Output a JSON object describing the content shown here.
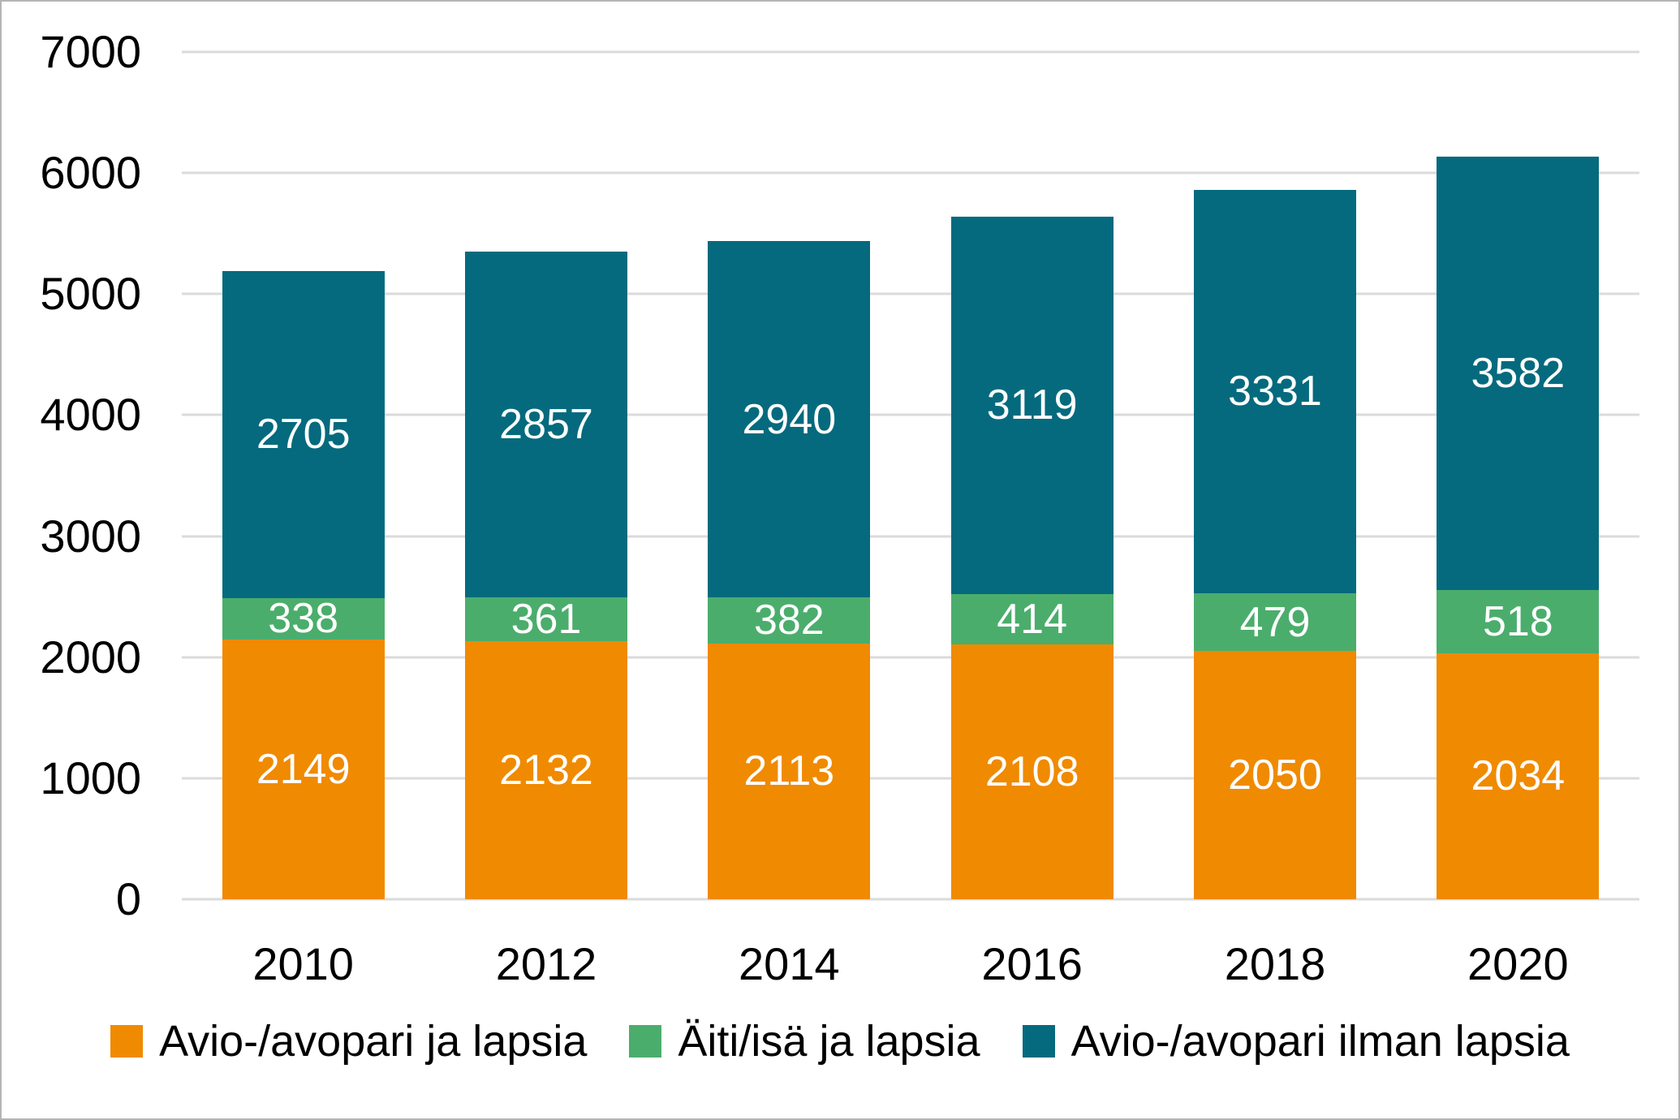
{
  "chart_data": {
    "type": "bar",
    "stacked": true,
    "categories": [
      "2010",
      "2012",
      "2014",
      "2016",
      "2018",
      "2020"
    ],
    "series": [
      {
        "id": "couple-with-children",
        "name": "Avio-/avopari ja lapsia",
        "color": "#f08a00",
        "values": [
          2149,
          2132,
          2113,
          2108,
          2050,
          2034
        ]
      },
      {
        "id": "single-parent-with-children",
        "name": "Äiti/isä ja lapsia",
        "color": "#4bad6c",
        "values": [
          338,
          361,
          382,
          414,
          479,
          518
        ]
      },
      {
        "id": "couple-without-children",
        "name": "Avio-/avopari ilman lapsia",
        "color": "#056a7e",
        "values": [
          2705,
          2857,
          2940,
          3119,
          3331,
          3582
        ]
      }
    ],
    "title": "",
    "xlabel": "",
    "ylabel": "",
    "ylim": [
      0,
      7000
    ],
    "yticks": [
      0,
      1000,
      2000,
      3000,
      4000,
      5000,
      6000,
      7000
    ],
    "grid": true,
    "gridline_color": "#dbdbdb",
    "axis_text_color": "#000000",
    "bar_label_color": "#ffffff",
    "legend_position": "bottom"
  }
}
